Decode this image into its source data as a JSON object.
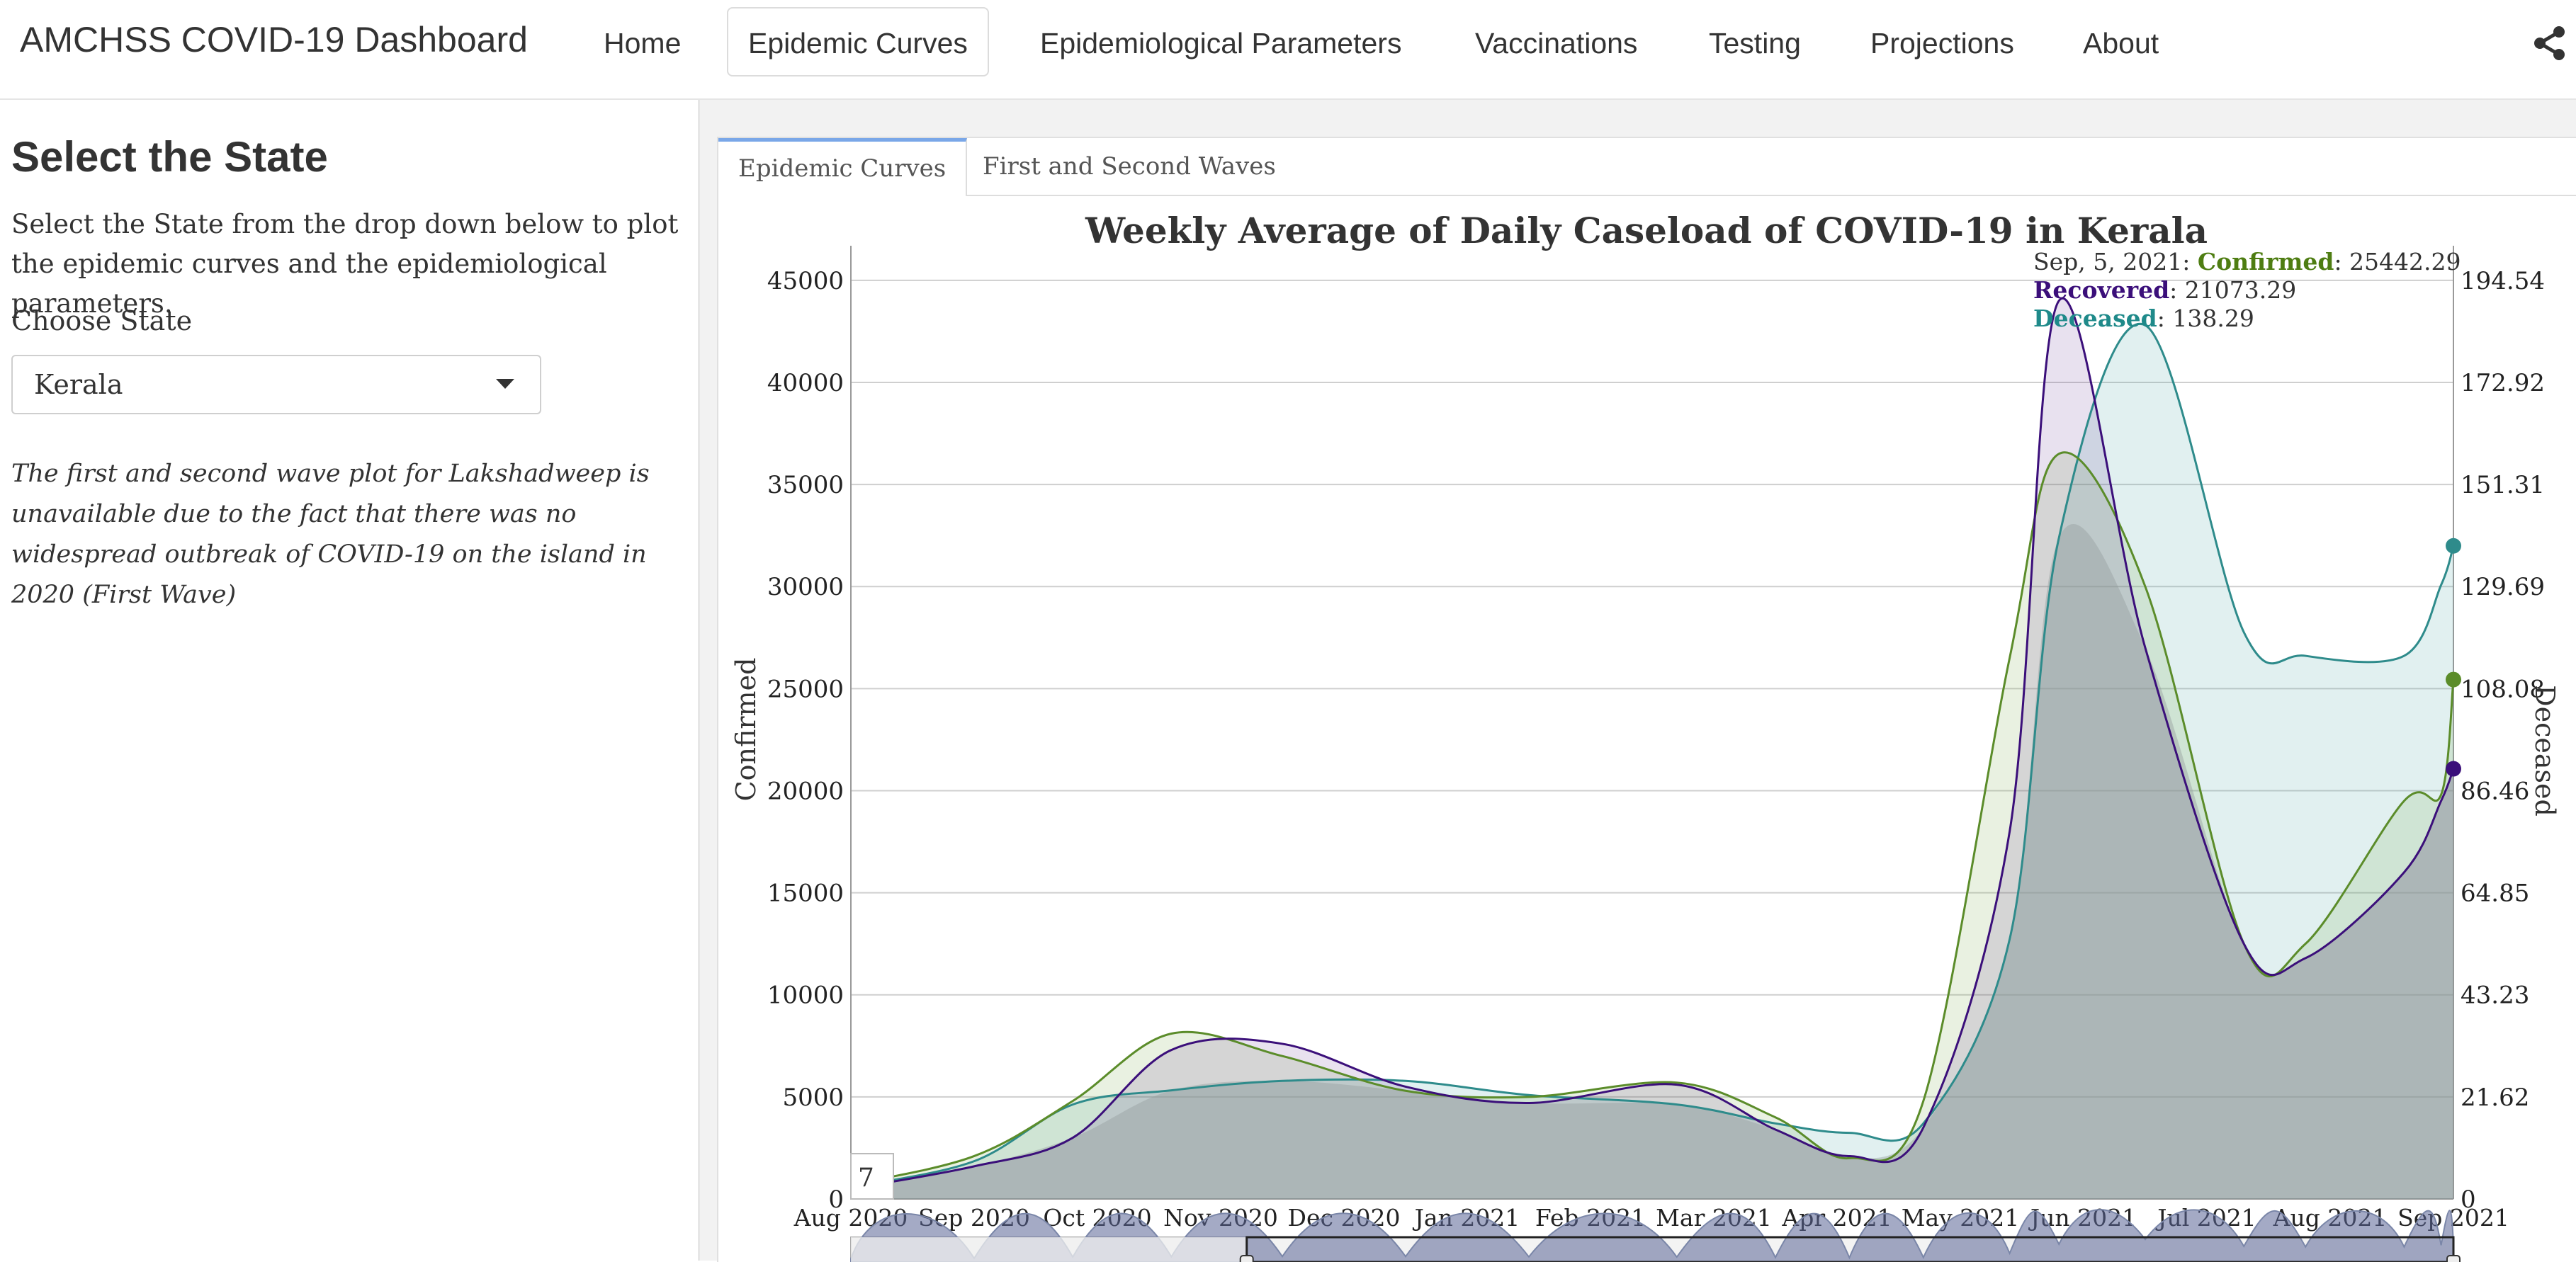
{
  "navbar": {
    "brand": "AMCHSS COVID-19 Dashboard",
    "items": [
      {
        "label": "Home",
        "active": false
      },
      {
        "label": "Epidemic Curves",
        "active": true
      },
      {
        "label": "Epidemiological Parameters",
        "active": false
      },
      {
        "label": "Vaccinations",
        "active": false
      },
      {
        "label": "Testing",
        "active": false
      },
      {
        "label": "Projections",
        "active": false
      },
      {
        "label": "About",
        "active": false
      }
    ],
    "share_icon": "share-icon"
  },
  "sidebar": {
    "title": "Select the State",
    "description": "Select the State from the drop down below to plot the epidemic curves and the epidemiological parameters.",
    "choose_label": "Choose State",
    "selected_state": "Kerala",
    "note": "The first and second wave plot for Lakshadweep is unavailable due to the fact that there was no widespread outbreak of COVID-19 on the island in 2020 (First Wave)"
  },
  "tabs": [
    {
      "label": "Epidemic Curves",
      "active": true
    },
    {
      "label": "First and Second Waves",
      "active": false
    }
  ],
  "chart_data": {
    "type": "area",
    "title": "Weekly Average of Daily Caseload of COVID-19 in Kerala",
    "ylabel": "Confirmed",
    "y2label": "Deceased",
    "ylim": [
      0,
      46000
    ],
    "y2lim": [
      0,
      198.83
    ],
    "yticks": [
      0,
      5000,
      10000,
      15000,
      20000,
      25000,
      30000,
      35000,
      40000,
      45000
    ],
    "y2ticks": [
      "0",
      "21.62",
      "43.23",
      "64.85",
      "86.46",
      "108.08",
      "129.69",
      "151.31",
      "172.92",
      "194.54"
    ],
    "xticks": [
      "Aug 2020",
      "Sep 2020",
      "Oct 2020",
      "Nov 2020",
      "Dec 2020",
      "Jan 2021",
      "Feb 2021",
      "Mar 2021",
      "Apr 2021",
      "May 2021",
      "Jun 2021",
      "Jul 2021",
      "Aug 2021",
      "Sep 2021"
    ],
    "x": [
      "Aug 2020",
      "Sep 2020",
      "Oct 2020",
      "Oct 2020",
      "Nov 2020",
      "Dec 2020",
      "Jan 2021",
      "Feb 2021",
      "Mar 2021",
      "Apr 2021",
      "Apr 2021",
      "May 2021",
      "May 2021",
      "Jun 2021",
      "Jun 2021",
      "Jul 2021",
      "Aug 2021",
      "Aug 2021",
      "Sep 2021"
    ],
    "series": [
      {
        "name": "Confirmed",
        "color": "#5b8c2a",
        "axis": "left",
        "values": [
          700,
          2100,
          4800,
          8100,
          7000,
          5300,
          5000,
          5700,
          4000,
          2000,
          4800,
          26500,
          36500,
          30000,
          12500,
          12500,
          19500,
          19800,
          25442.29
        ]
      },
      {
        "name": "Recovered",
        "color": "#3b0f7a",
        "axis": "left",
        "values": [
          500,
          1600,
          3000,
          7300,
          7600,
          5500,
          4700,
          5600,
          3400,
          2100,
          3500,
          18000,
          44000,
          27000,
          12500,
          11800,
          16000,
          19500,
          21073.29
        ]
      },
      {
        "name": "Deceased",
        "color": "#2e8b8b",
        "axis": "right",
        "values": [
          2.5,
          8,
          20,
          23,
          25,
          25,
          22,
          20,
          16,
          14,
          16,
          55,
          140,
          185,
          120,
          115,
          115,
          130,
          138.29
        ]
      }
    ],
    "tooltip": {
      "date": "Sep, 5, 2021",
      "entries": [
        {
          "label": "Confirmed",
          "value": "25442.29",
          "color": "#4e7d12"
        },
        {
          "label": "Recovered",
          "value": "21073.29",
          "color": "#3b0f7a"
        },
        {
          "label": "Deceased",
          "value": "138.29",
          "color": "#1f8a8a"
        }
      ]
    },
    "rolling_window": "7",
    "grid": true
  }
}
